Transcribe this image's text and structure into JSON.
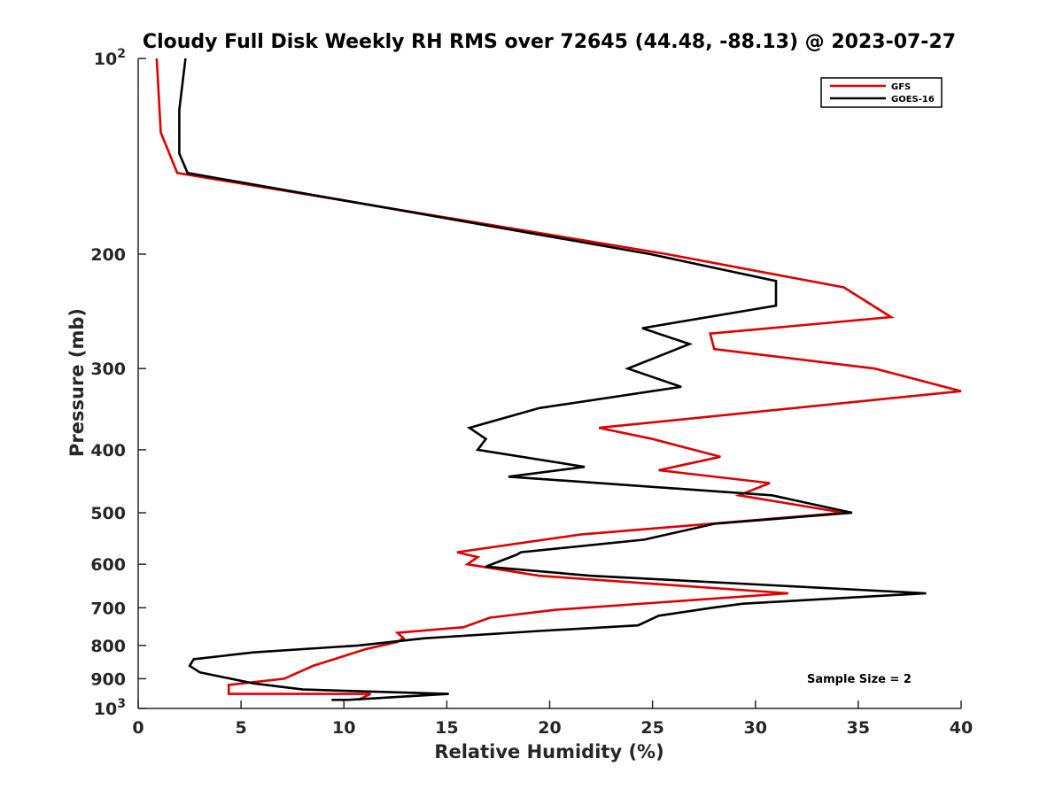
{
  "chart_data": {
    "type": "line",
    "title": "Cloudy Full Disk Weekly RH RMS over 72645 (44.48, -88.13) @ 2023-07-27",
    "xlabel": "Relative Humidity (%)",
    "ylabel": "Pressure (mb)",
    "xlim": [
      0,
      40
    ],
    "ylim": [
      100,
      1000
    ],
    "yscale": "log",
    "y_reversed": true,
    "grid": false,
    "legend_position": "top-right",
    "x_ticks": [
      "0",
      "5",
      "10",
      "15",
      "20",
      "25",
      "30",
      "35",
      "40"
    ],
    "y_ticks": [
      {
        "value": 100,
        "label": "10",
        "sup": "2"
      },
      {
        "value": 200,
        "label": "200",
        "sup": ""
      },
      {
        "value": 300,
        "label": "300",
        "sup": ""
      },
      {
        "value": 400,
        "label": "400",
        "sup": ""
      },
      {
        "value": 500,
        "label": "500",
        "sup": ""
      },
      {
        "value": 600,
        "label": "600",
        "sup": ""
      },
      {
        "value": 700,
        "label": "700",
        "sup": ""
      },
      {
        "value": 800,
        "label": "800",
        "sup": ""
      },
      {
        "value": 900,
        "label": "900",
        "sup": ""
      },
      {
        "value": 1000,
        "label": "10",
        "sup": "3"
      }
    ],
    "series": [
      {
        "name": "GFS",
        "color": "#e00000",
        "points": [
          [
            0.9,
            100
          ],
          [
            1.1,
            130
          ],
          [
            1.9,
            150
          ],
          [
            25.7,
            200
          ],
          [
            34.3,
            225
          ],
          [
            36.6,
            250
          ],
          [
            27.8,
            265
          ],
          [
            28.0,
            280
          ],
          [
            35.8,
            300
          ],
          [
            40.0,
            325
          ],
          [
            22.4,
            370
          ],
          [
            25.0,
            385
          ],
          [
            28.3,
            410
          ],
          [
            25.3,
            430
          ],
          [
            30.7,
            450
          ],
          [
            29.2,
            470
          ],
          [
            34.3,
            500
          ],
          [
            21.5,
            540
          ],
          [
            15.5,
            575
          ],
          [
            16.5,
            585
          ],
          [
            16.0,
            600
          ],
          [
            19.5,
            625
          ],
          [
            31.6,
            665
          ],
          [
            20.3,
            705
          ],
          [
            17.1,
            725
          ],
          [
            15.8,
            750
          ],
          [
            12.6,
            765
          ],
          [
            12.9,
            780
          ],
          [
            12.6,
            790
          ],
          [
            11.1,
            810
          ],
          [
            8.5,
            860
          ],
          [
            7.1,
            900
          ],
          [
            4.4,
            920
          ],
          [
            4.4,
            950
          ],
          [
            11.3,
            950
          ],
          [
            10.7,
            970
          ]
        ]
      },
      {
        "name": "GOES-16",
        "color": "#000000",
        "points": [
          [
            2.3,
            100
          ],
          [
            2.0,
            120
          ],
          [
            2.0,
            140
          ],
          [
            2.4,
            150
          ],
          [
            24.9,
            200
          ],
          [
            31.0,
            220
          ],
          [
            31.0,
            240
          ],
          [
            24.5,
            260
          ],
          [
            26.8,
            275
          ],
          [
            23.8,
            300
          ],
          [
            26.4,
            320
          ],
          [
            19.5,
            345
          ],
          [
            16.1,
            370
          ],
          [
            16.9,
            385
          ],
          [
            16.5,
            400
          ],
          [
            21.7,
            425
          ],
          [
            18.0,
            440
          ],
          [
            30.8,
            470
          ],
          [
            34.7,
            500
          ],
          [
            28.0,
            520
          ],
          [
            24.6,
            550
          ],
          [
            18.6,
            575
          ],
          [
            18.4,
            580
          ],
          [
            16.9,
            605
          ],
          [
            22.0,
            625
          ],
          [
            38.3,
            665
          ],
          [
            29.4,
            690
          ],
          [
            27.9,
            700
          ],
          [
            25.3,
            720
          ],
          [
            24.3,
            745
          ],
          [
            19.5,
            760
          ],
          [
            13.9,
            780
          ],
          [
            10.7,
            800
          ],
          [
            5.6,
            820
          ],
          [
            2.7,
            840
          ],
          [
            2.5,
            860
          ],
          [
            3.0,
            880
          ],
          [
            5.6,
            915
          ],
          [
            8.0,
            935
          ],
          [
            15.1,
            950
          ],
          [
            10.2,
            970
          ],
          [
            9.4,
            970
          ]
        ]
      }
    ],
    "annotation": "Sample Size = 2"
  }
}
